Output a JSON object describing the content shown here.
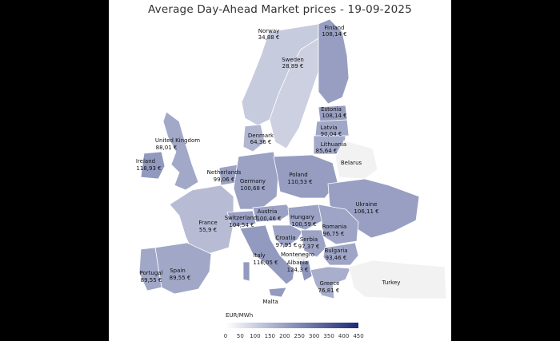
{
  "title": "Average Day-Ahead Market prices - 19-09-2025",
  "legend": {
    "title": "EUR/MWh",
    "ticks": [
      "0",
      "50",
      "100",
      "150",
      "200",
      "250",
      "300",
      "350",
      "400",
      "450"
    ],
    "min": 0,
    "max": 450,
    "color_low": "#ffffff",
    "color_high": "#1b2a78",
    "no_data_color": "#f2f2f2"
  },
  "countries": [
    {
      "name": "Norway",
      "value": "34,88 €",
      "price": 34.88
    },
    {
      "name": "Finland",
      "value": "108,14 €",
      "price": 108.14
    },
    {
      "name": "Sweden",
      "value": "28,89 €",
      "price": 28.89
    },
    {
      "name": "Estonia",
      "value": "108,14 €",
      "price": 108.14
    },
    {
      "name": "Latvia",
      "value": "90,04 €",
      "price": 90.04
    },
    {
      "name": "Lithuania",
      "value": "85,64 €",
      "price": 85.64
    },
    {
      "name": "Denmark",
      "value": "64,36 €",
      "price": 64.36
    },
    {
      "name": "United Kingdom",
      "value": "88,01 €",
      "price": 88.01
    },
    {
      "name": "Ireland",
      "value": "118,93 €",
      "price": 118.93
    },
    {
      "name": "Netherlands",
      "value": "99,06 €",
      "price": 99.06
    },
    {
      "name": "Germany",
      "value": "100,68 €",
      "price": 100.68
    },
    {
      "name": "Poland",
      "value": "110,53 €",
      "price": 110.53
    },
    {
      "name": "Belarus",
      "value": "",
      "price": null
    },
    {
      "name": "Ukraine",
      "value": "106,11 €",
      "price": 106.11
    },
    {
      "name": "France",
      "value": "55,9 €",
      "price": 55.9
    },
    {
      "name": "Switzerland",
      "value": "104,54 €",
      "price": 104.54
    },
    {
      "name": "Austria",
      "value": "100,46 €",
      "price": 100.46
    },
    {
      "name": "Hungary",
      "value": "100,59 €",
      "price": 100.59
    },
    {
      "name": "Romania",
      "value": "96,75 €",
      "price": 96.75
    },
    {
      "name": "Croatia",
      "value": "97,95 €",
      "price": 97.95
    },
    {
      "name": "Serbia",
      "value": "97,37 €",
      "price": 97.37
    },
    {
      "name": "Bulgaria",
      "value": "93,46 €",
      "price": 93.46
    },
    {
      "name": "Montenegro",
      "value": "",
      "price": null
    },
    {
      "name": "Albania",
      "value": "124,3 €",
      "price": 124.3
    },
    {
      "name": "Italy",
      "value": "116,05 €",
      "price": 116.05
    },
    {
      "name": "Greece",
      "value": "76,81 €",
      "price": 76.81
    },
    {
      "name": "Turkey",
      "value": "",
      "price": null
    },
    {
      "name": "Portugal",
      "value": "89,55 €",
      "price": 89.55
    },
    {
      "name": "Spain",
      "value": "89,55 €",
      "price": 89.55
    },
    {
      "name": "Malta",
      "value": "",
      "price": null
    }
  ]
}
